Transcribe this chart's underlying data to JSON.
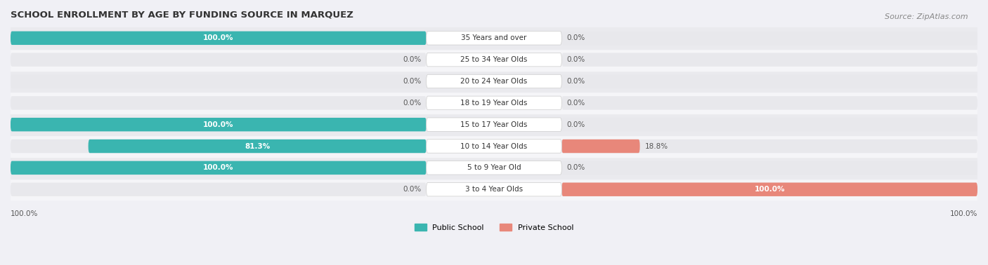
{
  "title": "SCHOOL ENROLLMENT BY AGE BY FUNDING SOURCE IN MARQUEZ",
  "source": "Source: ZipAtlas.com",
  "categories": [
    "3 to 4 Year Olds",
    "5 to 9 Year Old",
    "10 to 14 Year Olds",
    "15 to 17 Year Olds",
    "18 to 19 Year Olds",
    "20 to 24 Year Olds",
    "25 to 34 Year Olds",
    "35 Years and over"
  ],
  "public_values": [
    0.0,
    100.0,
    81.3,
    100.0,
    0.0,
    0.0,
    0.0,
    100.0
  ],
  "private_values": [
    100.0,
    0.0,
    18.8,
    0.0,
    0.0,
    0.0,
    0.0,
    0.0
  ],
  "public_color": "#3ab5b0",
  "private_color": "#e8877a",
  "public_label": "Public School",
  "private_label": "Private School",
  "bar_bg_color": "#e8e8ec",
  "row_bg_colors": [
    "#f5f5f8",
    "#eaeaee"
  ],
  "title_color": "#333333",
  "source_color": "#888888",
  "label_color": "#333333",
  "value_color_inside": "#ffffff",
  "value_color_outside": "#555555",
  "bottom_axis_left": "100.0%",
  "bottom_axis_right": "100.0%"
}
